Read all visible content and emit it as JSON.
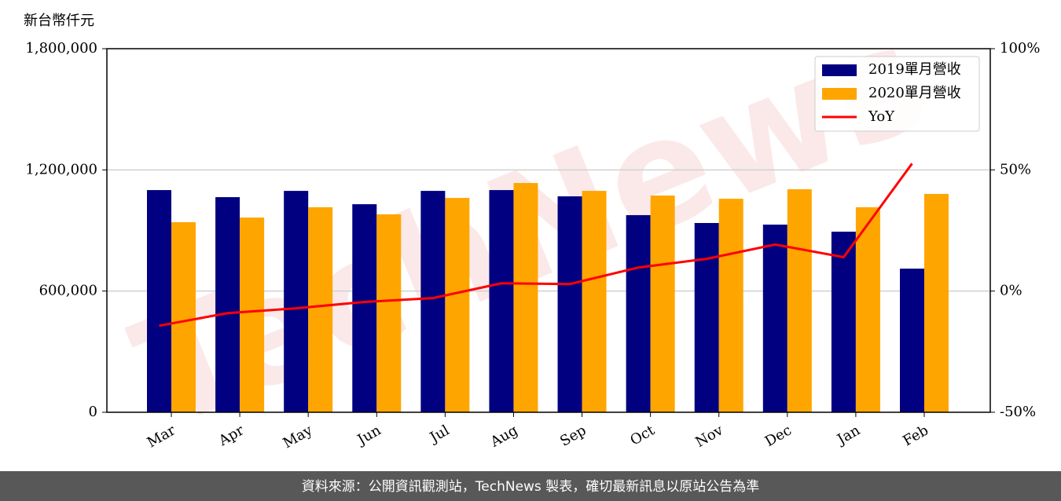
{
  "chart_data": {
    "type": "bar",
    "unit_label": "新台幣仟元",
    "watermark": "TechNews",
    "footer": "資料來源：公開資訊觀測站，TechNews 製表，確切最新訊息以原站公告為準",
    "categories": [
      "Mar",
      "Apr",
      "May",
      "Jun",
      "Jul",
      "Aug",
      "Sep",
      "Oct",
      "Nov",
      "Dec",
      "Jan",
      "Feb"
    ],
    "series": [
      {
        "name": "2019單月營收",
        "type": "bar",
        "color": "#000080",
        "values": [
          1100000,
          1065000,
          1096000,
          1030000,
          1096000,
          1100000,
          1069000,
          976000,
          937000,
          929000,
          894000,
          711000
        ]
      },
      {
        "name": "2020單月營收",
        "type": "bar",
        "color": "#ffa500",
        "values": [
          941000,
          964000,
          1015000,
          980000,
          1061000,
          1135000,
          1096000,
          1073000,
          1057000,
          1104000,
          1015000,
          1081000
        ]
      },
      {
        "name": "YoY",
        "type": "line",
        "axis": "y2",
        "color": "#ff0000",
        "values": [
          -14.3,
          -9.1,
          -7.1,
          -4.5,
          -2.9,
          3.2,
          2.9,
          9.7,
          13.3,
          19.2,
          14.0,
          52.6
        ]
      }
    ],
    "ylim": [
      0,
      1800000
    ],
    "yticks": [
      0,
      {
        "value": 600000,
        "label": "600,000"
      },
      {
        "value": 1200000,
        "label": "1,200,000"
      },
      {
        "value": 1800000,
        "label": "1,800,000"
      }
    ],
    "y2lim": [
      -50,
      100
    ],
    "y2ticks": [
      {
        "value": -50,
        "label": "-50%"
      },
      {
        "value": 0,
        "label": "0%"
      },
      {
        "value": 50,
        "label": "50%"
      },
      {
        "value": 100,
        "label": "100%"
      }
    ],
    "grid": true,
    "legend": "upper right"
  }
}
